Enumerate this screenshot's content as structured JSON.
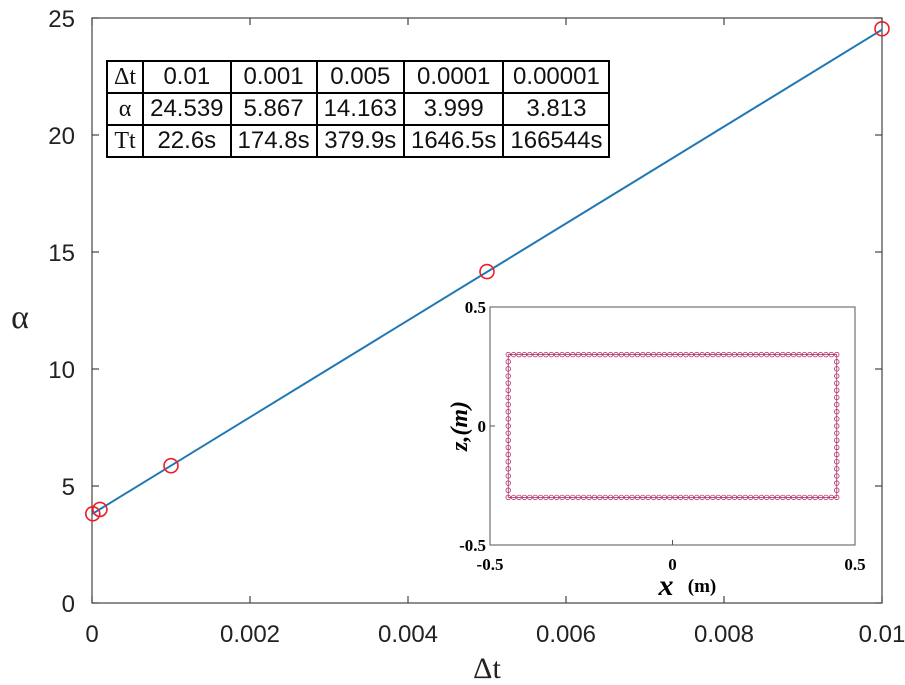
{
  "chart_data": [
    {
      "type": "line",
      "xlabel": "Δt",
      "ylabel": "α",
      "xlim": [
        0,
        0.01
      ],
      "ylim": [
        0,
        25
      ],
      "x_ticks": [
        "0",
        "0.002",
        "0.004",
        "0.006",
        "0.008",
        "0.01"
      ],
      "y_ticks": [
        "0",
        "5",
        "10",
        "15",
        "20",
        "25"
      ],
      "line_color": "#1f77b4",
      "marker_color": "#e8202a",
      "fit_line": [
        [
          0,
          3.8
        ],
        [
          0.01,
          24.5
        ]
      ],
      "points": [
        {
          "x": 0.01,
          "y": 24.539
        },
        {
          "x": 0.001,
          "y": 5.867
        },
        {
          "x": 0.005,
          "y": 14.163
        },
        {
          "x": 0.0001,
          "y": 3.999
        },
        {
          "x": 1e-05,
          "y": 3.813
        }
      ],
      "table": {
        "rows": [
          {
            "label": "Δt",
            "cells": [
              "0.01",
              "0.001",
              "0.005",
              "0.0001",
              "0.00001"
            ]
          },
          {
            "label": "α",
            "cells": [
              "24.539",
              "5.867",
              "14.163",
              "3.999",
              "3.813"
            ]
          },
          {
            "label": "Tt",
            "cells": [
              "22.6s",
              "174.8s",
              "379.9s",
              "1646.5s",
              "166544s"
            ]
          }
        ]
      }
    },
    {
      "type": "scatter",
      "xlabel": "x",
      "xlabel_unit": "(m)",
      "ylabel": "z,(m)",
      "xlim": [
        -0.5,
        0.5
      ],
      "ylim": [
        -0.5,
        0.5
      ],
      "x_ticks": [
        "-0.5",
        "0",
        "0.5"
      ],
      "y_ticks": [
        "0.5",
        "0",
        "-0.5"
      ],
      "marker_color": "#b0306a",
      "shape": "rectangle boundary",
      "x_range": [
        -0.45,
        0.45
      ],
      "z_range": [
        -0.3,
        0.3
      ],
      "points_per_horizontal_side": 62,
      "points_per_vertical_side": 21
    }
  ]
}
